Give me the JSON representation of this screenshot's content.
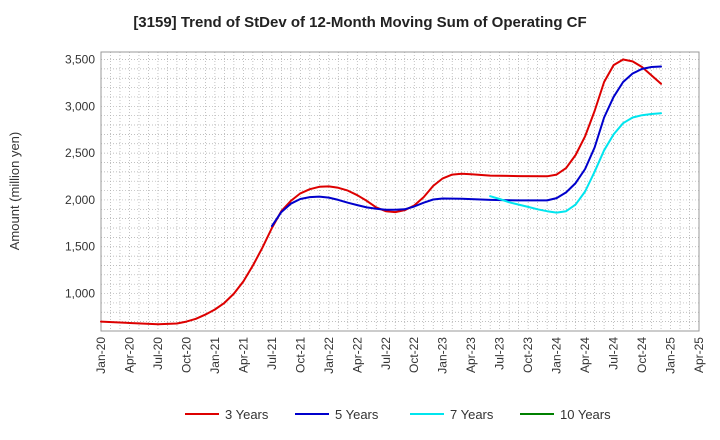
{
  "chart_data": {
    "type": "line",
    "title": "[3159]  Trend of StDev of 12-Month Moving Sum of Operating CF",
    "ylabel": "Amount (million yen)",
    "xlabel": "",
    "ylim": [
      600,
      3580
    ],
    "yticks": [
      1000,
      1500,
      2000,
      2500,
      3000,
      3500
    ],
    "ytick_labels": [
      "1,000",
      "1,500",
      "2,000",
      "2,500",
      "3,000",
      "3,500"
    ],
    "xticks": [
      "Jan-20",
      "Apr-20",
      "Jul-20",
      "Oct-20",
      "Jan-21",
      "Apr-21",
      "Jul-21",
      "Oct-21",
      "Jan-22",
      "Apr-22",
      "Jul-22",
      "Oct-22",
      "Jan-23",
      "Apr-23",
      "Jul-23",
      "Oct-23",
      "Jan-24",
      "Apr-24",
      "Jul-24",
      "Oct-24",
      "Jan-25",
      "Apr-25"
    ],
    "grid": true,
    "legend_position": "bottom",
    "series": [
      {
        "name": "3 Years",
        "color": "#dd0000",
        "points": [
          [
            0,
            700
          ],
          [
            3,
            685
          ],
          [
            6,
            672
          ],
          [
            8,
            680
          ],
          [
            9,
            700
          ],
          [
            10,
            730
          ],
          [
            11,
            775
          ],
          [
            12,
            830
          ],
          [
            13,
            900
          ],
          [
            14,
            1000
          ],
          [
            15,
            1130
          ],
          [
            16,
            1300
          ],
          [
            17,
            1490
          ],
          [
            18,
            1700
          ],
          [
            19,
            1880
          ],
          [
            20,
            1990
          ],
          [
            21,
            2070
          ],
          [
            22,
            2115
          ],
          [
            23,
            2140
          ],
          [
            24,
            2145
          ],
          [
            25,
            2130
          ],
          [
            26,
            2100
          ],
          [
            27,
            2050
          ],
          [
            28,
            1990
          ],
          [
            29,
            1920
          ],
          [
            30,
            1880
          ],
          [
            31,
            1870
          ],
          [
            32,
            1890
          ],
          [
            33,
            1940
          ],
          [
            34,
            2030
          ],
          [
            35,
            2150
          ],
          [
            36,
            2230
          ],
          [
            37,
            2270
          ],
          [
            38,
            2280
          ],
          [
            39,
            2275
          ],
          [
            41,
            2260
          ],
          [
            44,
            2255
          ],
          [
            47,
            2252
          ],
          [
            48,
            2270
          ],
          [
            49,
            2340
          ],
          [
            50,
            2480
          ],
          [
            51,
            2680
          ],
          [
            52,
            2950
          ],
          [
            53,
            3260
          ],
          [
            54,
            3440
          ],
          [
            55,
            3500
          ],
          [
            56,
            3480
          ],
          [
            57,
            3420
          ],
          [
            58,
            3330
          ],
          [
            59,
            3240
          ]
        ]
      },
      {
        "name": "5 Years",
        "color": "#0000cc",
        "points": [
          [
            18,
            1720
          ],
          [
            19,
            1870
          ],
          [
            20,
            1960
          ],
          [
            21,
            2010
          ],
          [
            22,
            2030
          ],
          [
            23,
            2035
          ],
          [
            24,
            2025
          ],
          [
            25,
            2000
          ],
          [
            26,
            1970
          ],
          [
            27,
            1945
          ],
          [
            28,
            1920
          ],
          [
            29,
            1905
          ],
          [
            30,
            1895
          ],
          [
            31,
            1895
          ],
          [
            32,
            1900
          ],
          [
            33,
            1930
          ],
          [
            34,
            1970
          ],
          [
            35,
            2005
          ],
          [
            36,
            2015
          ],
          [
            38,
            2012
          ],
          [
            41,
            2000
          ],
          [
            44,
            1995
          ],
          [
            47,
            1995
          ],
          [
            48,
            2020
          ],
          [
            49,
            2080
          ],
          [
            50,
            2180
          ],
          [
            51,
            2330
          ],
          [
            52,
            2560
          ],
          [
            53,
            2880
          ],
          [
            54,
            3100
          ],
          [
            55,
            3260
          ],
          [
            56,
            3350
          ],
          [
            57,
            3400
          ],
          [
            58,
            3420
          ],
          [
            59,
            3425
          ]
        ]
      },
      {
        "name": "7 Years",
        "color": "#00e5ee",
        "points": [
          [
            41,
            2040
          ],
          [
            42,
            2010
          ],
          [
            43,
            1975
          ],
          [
            44,
            1950
          ],
          [
            45,
            1925
          ],
          [
            46,
            1900
          ],
          [
            47,
            1880
          ],
          [
            48,
            1865
          ],
          [
            49,
            1880
          ],
          [
            50,
            1950
          ],
          [
            51,
            2090
          ],
          [
            52,
            2300
          ],
          [
            53,
            2530
          ],
          [
            54,
            2700
          ],
          [
            55,
            2820
          ],
          [
            56,
            2880
          ],
          [
            57,
            2905
          ],
          [
            58,
            2918
          ],
          [
            59,
            2925
          ]
        ]
      },
      {
        "name": "10 Years",
        "color": "#008000",
        "points": []
      }
    ]
  }
}
